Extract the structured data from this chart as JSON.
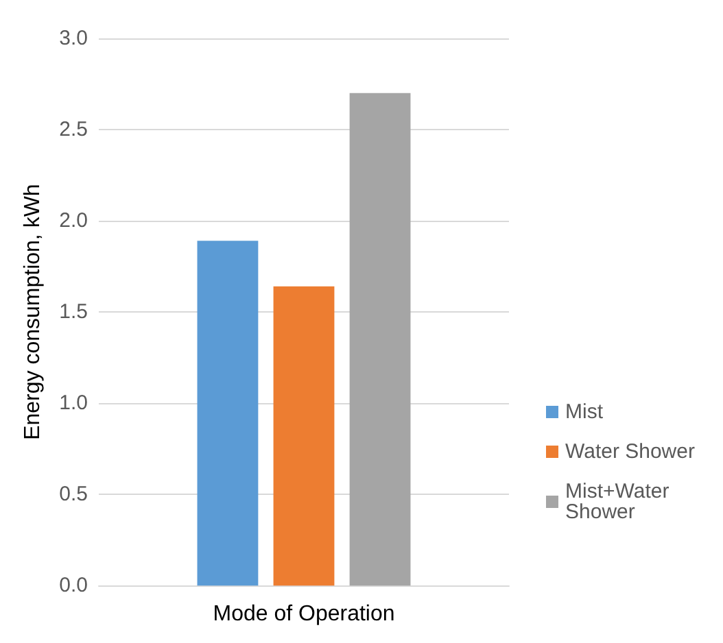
{
  "chart_data": {
    "type": "bar",
    "xlabel": "Mode of Operation",
    "ylabel": "Energy consumption, kWh",
    "categories": [
      null
    ],
    "series": [
      {
        "name": "Mist",
        "color": "#5b9bd5",
        "values": [
          1.89
        ]
      },
      {
        "name": "Water Shower",
        "color": "#ed7d31",
        "values": [
          1.64
        ]
      },
      {
        "name": "Mist+Water Shower",
        "color": "#a5a5a5",
        "values": [
          2.7
        ]
      }
    ],
    "ylim": [
      0,
      3
    ],
    "yticks": [
      {
        "value": 0,
        "label": "0.0"
      },
      {
        "value": 0.5,
        "label": "0.5"
      },
      {
        "value": 1,
        "label": "1.0"
      },
      {
        "value": 1.5,
        "label": "1.5"
      },
      {
        "value": 2,
        "label": "2.0"
      },
      {
        "value": 2.5,
        "label": "2.5"
      },
      {
        "value": 3,
        "label": "3.0"
      }
    ],
    "grid": "y",
    "legend": "right"
  }
}
